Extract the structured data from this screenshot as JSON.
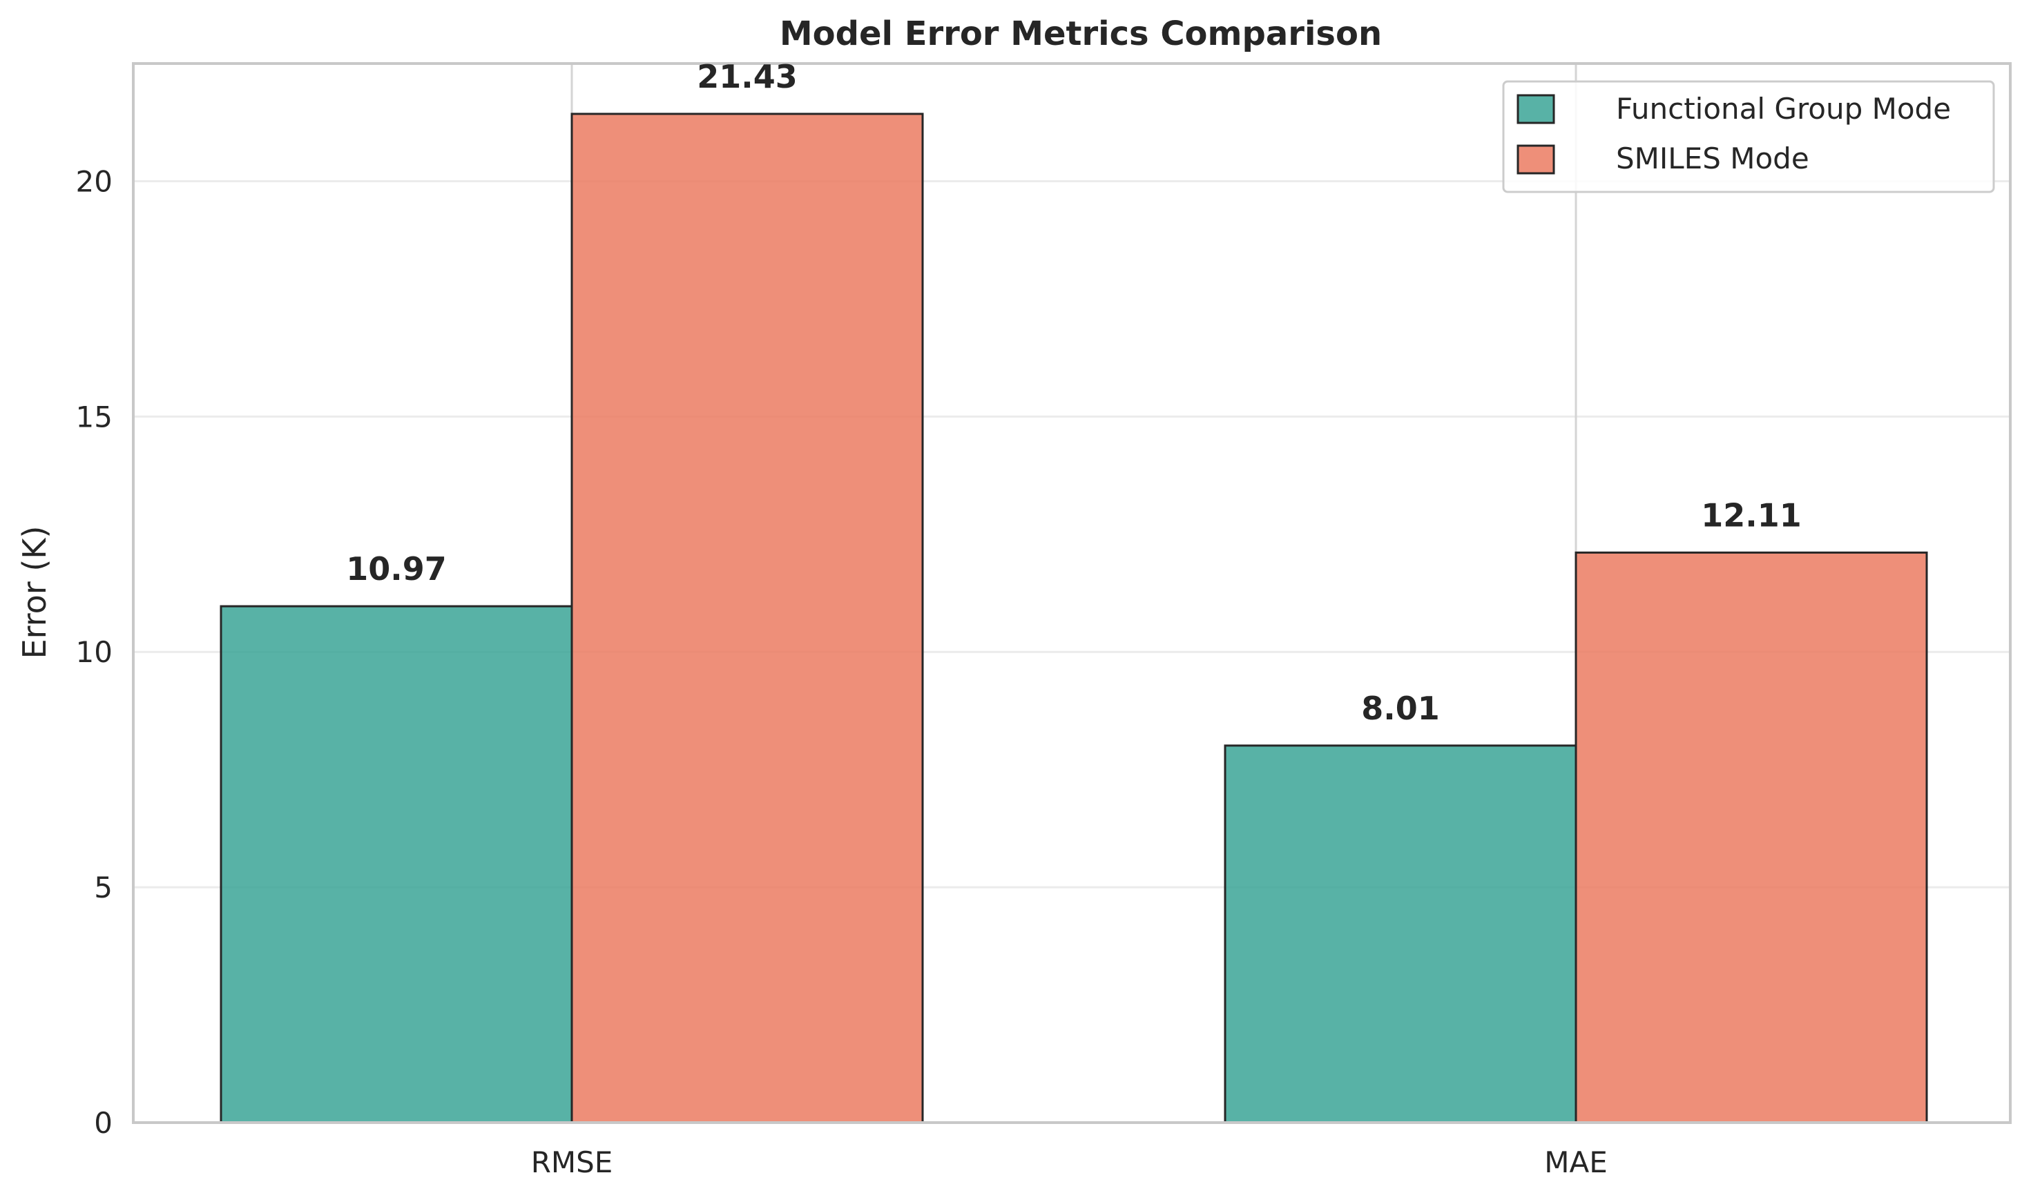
{
  "chart_data": {
    "type": "bar",
    "title": "Model Error Metrics Comparison",
    "xlabel": "",
    "ylabel": "Error (K)",
    "categories": [
      "RMSE",
      "MAE"
    ],
    "series": [
      {
        "name": "Functional Group Mode",
        "values": [
          10.97,
          8.01
        ],
        "color": "#3ba597"
      },
      {
        "name": "SMILES Mode",
        "values": [
          21.43,
          12.11
        ],
        "color": "#eb7b61"
      }
    ],
    "value_labels": [
      [
        "10.97",
        "8.01"
      ],
      [
        "21.43",
        "12.11"
      ]
    ],
    "ylim": [
      0,
      22.5
    ],
    "yticks": [
      0,
      5,
      10,
      15,
      20
    ],
    "ytick_labels": [
      "0",
      "5",
      "10",
      "15",
      "20"
    ],
    "grid": true,
    "legend": "top-right"
  }
}
